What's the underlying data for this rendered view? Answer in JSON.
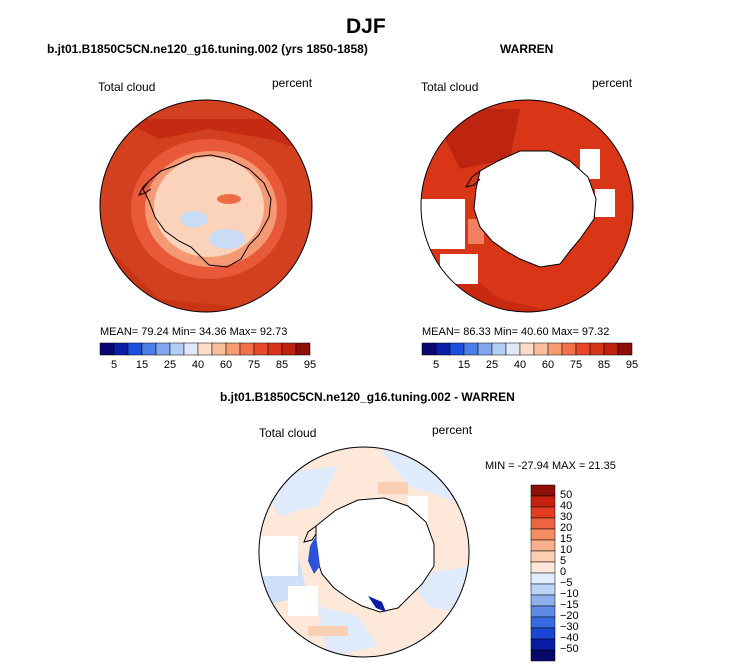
{
  "main_title": "DJF",
  "colorbar_abs": {
    "colors": [
      "#08086e",
      "#0a1fa8",
      "#1c4fde",
      "#4a7ee8",
      "#7fa6ee",
      "#b4cdf4",
      "#dfe9fa",
      "#fbdcc6",
      "#fbbf9c",
      "#f79c72",
      "#f0714a",
      "#e6492a",
      "#d8341a",
      "#c0210f",
      "#8c0f08"
    ],
    "labels": [
      "5",
      "15",
      "25",
      "40",
      "60",
      "75",
      "85",
      "95"
    ]
  },
  "panels": [
    {
      "title": "b.jt01.B1850C5CN.ne120_g16.tuning.002 (yrs 1850-1858)",
      "left_label": "Total cloud",
      "right_label": "percent",
      "stats": "MEAN=  79.24  Min=  34.36  Max=  92.73"
    },
    {
      "title": "WARREN",
      "left_label": "Total cloud",
      "right_label": "percent",
      "stats": "MEAN=  86.33  Min=  40.60  Max=  97.32"
    }
  ],
  "diff_panel": {
    "title": "b.jt01.B1850C5CN.ne120_g16.tuning.002 - WARREN",
    "left_label": "Total cloud",
    "right_label": "percent",
    "stats": "MIN = -27.94  MAX =   21.35"
  },
  "colorbar_diff": {
    "colors": [
      "#07076a",
      "#0a1ca4",
      "#1b45d6",
      "#3868e2",
      "#5f8be8",
      "#8fb0ee",
      "#bdd4f6",
      "#e2edfb",
      "#fde8d9",
      "#fbd0b2",
      "#f9b08c",
      "#f58c64",
      "#ee6441",
      "#e23d22",
      "#c6220f",
      "#8e0f08"
    ],
    "labels": [
      "50",
      "40",
      "30",
      "20",
      "15",
      "10",
      "5",
      "0",
      "−5",
      "−10",
      "−15",
      "−20",
      "−30",
      "−40",
      "−50"
    ]
  }
}
